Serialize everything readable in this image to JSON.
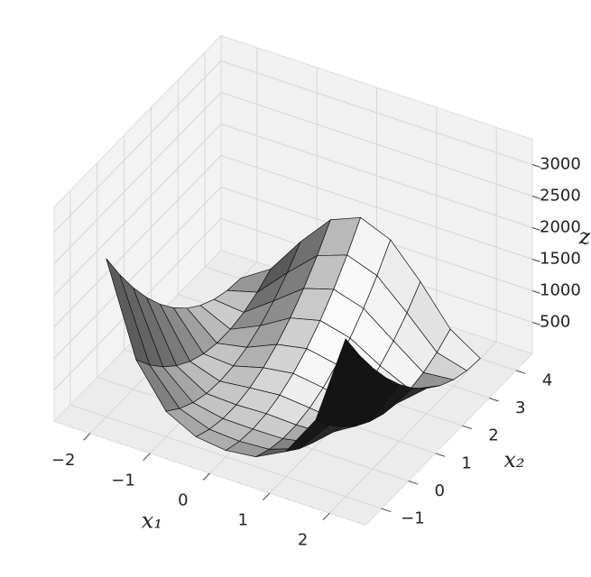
{
  "chart_data": {
    "type": "surface",
    "x1": [
      -2,
      -1.5,
      -1,
      -0.5,
      0,
      0.5,
      1,
      1.5,
      2
    ],
    "x2": [
      -1,
      -0.5,
      0,
      0.5,
      1,
      1.5,
      2,
      2.5,
      3,
      3.5,
      4
    ],
    "z": [
      [
        2509,
        1062.5,
        404,
        158.5,
        101,
        156.5,
        400,
        1056.5,
        2501
      ],
      [
        2034,
        762.5,
        229,
        58.5,
        26,
        56.5,
        225,
        756.5,
        2026
      ],
      [
        1609,
        512.5,
        104,
        8.5,
        1,
        6.5,
        100,
        506.5,
        1601
      ],
      [
        1234,
        312.5,
        29,
        8.5,
        26,
        6.5,
        25,
        306.5,
        1226
      ],
      [
        909,
        162.5,
        4,
        58.5,
        101,
        56.5,
        0,
        156.5,
        901
      ],
      [
        634,
        62.5,
        29,
        158.5,
        226,
        156.5,
        25,
        56.5,
        626
      ],
      [
        409,
        12.5,
        104,
        308.5,
        401,
        306.5,
        100,
        6.5,
        401
      ],
      [
        234,
        12.5,
        229,
        508.5,
        626,
        506.5,
        225,
        6.5,
        226
      ],
      [
        109,
        62.5,
        404,
        758.5,
        901,
        756.5,
        400,
        56.5,
        101
      ],
      [
        34,
        162.5,
        629,
        1058.5,
        1226,
        1056.5,
        625,
        156.5,
        26
      ],
      [
        9,
        312.5,
        904,
        1408.5,
        1601,
        1406.5,
        900,
        306.5,
        1
      ]
    ],
    "xlabel": "x₁",
    "ylabel": "x₂",
    "zlabel": "z",
    "xlim": [
      -2.6,
      2.6
    ],
    "ylim": [
      -1.6,
      4.6
    ],
    "zlim": [
      0,
      3400
    ],
    "xticks": [
      {
        "value": -2,
        "label": "−2"
      },
      {
        "value": -1,
        "label": "−1"
      },
      0,
      1,
      2
    ],
    "yticks": [
      {
        "value": -1,
        "label": "−1"
      },
      0,
      1,
      2,
      3,
      4
    ],
    "zticks": [
      500,
      1000,
      1500,
      2000,
      2500,
      3000
    ],
    "color": "#c8c8c8",
    "grid": true
  }
}
